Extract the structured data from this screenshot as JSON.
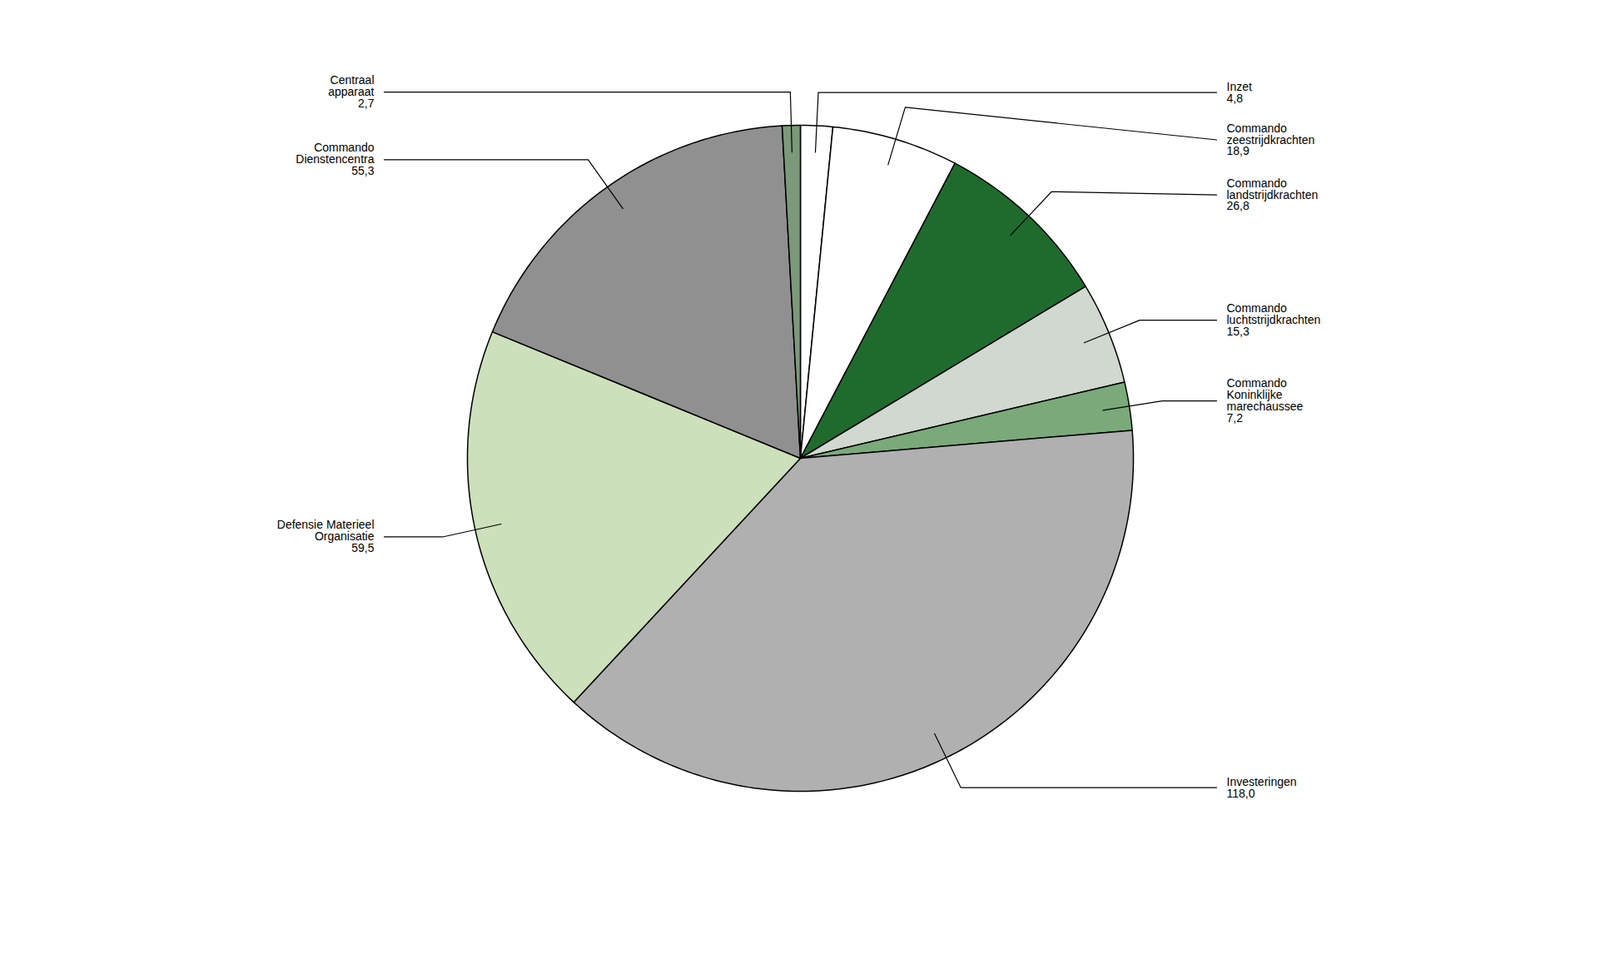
{
  "chart_data": {
    "type": "pie",
    "categories": [
      "Inzet",
      "Commando\nzeestrijdkrachten",
      "Commando\nlandstrijdkrachten",
      "Commando\nluchtstrijdkrachten",
      "Commando\nKoninklijke\nmarechaussee",
      "Investeringen",
      "Defensie Materieel\nOrganisatie",
      "Commando\nDienstencentra",
      "Centraal\napparaat"
    ],
    "values": [
      4.8,
      18.9,
      26.8,
      15.3,
      7.2,
      118.0,
      59.5,
      55.3,
      2.7
    ],
    "value_labels": [
      "4,8",
      "18,9",
      "26,8",
      "15,3",
      "7,2",
      "118,0",
      "59,5",
      "55,3",
      "2,7"
    ],
    "colors": [
      "#ffffff",
      "#ffffff",
      "#1f6b2e",
      "#d0d8d0",
      "#7aaa7a",
      "#b0b0b0",
      "#cce0bb",
      "#909090",
      "#7a9a7a"
    ],
    "data_labels": true
  }
}
